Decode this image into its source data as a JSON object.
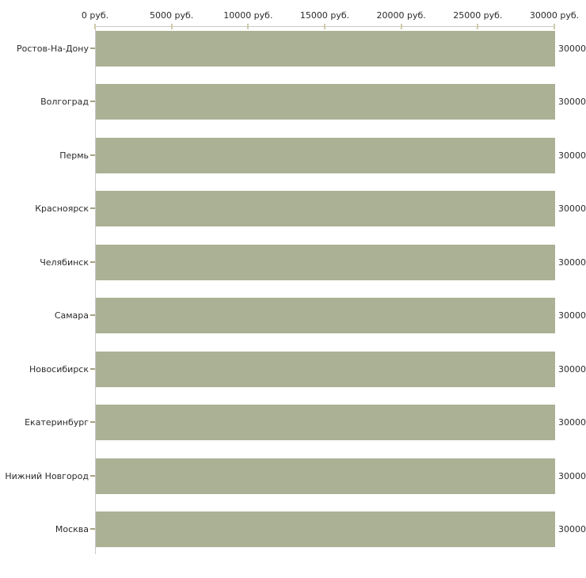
{
  "chart_data": {
    "type": "bar",
    "orientation": "horizontal",
    "title": "",
    "categories": [
      "Ростов-На-Дону",
      "Волгоград",
      "Пермь",
      "Красноярск",
      "Челябинск",
      "Самара",
      "Новосибирск",
      "Екатеринбург",
      "Нижний Новгород",
      "Москва"
    ],
    "values": [
      30000,
      30000,
      30000,
      30000,
      30000,
      30000,
      30000,
      30000,
      30000,
      30000
    ],
    "bar_value_labels": [
      "30000",
      "30000",
      "30000",
      "30000",
      "30000",
      "30000",
      "30000",
      "30000",
      "30000",
      "30000"
    ],
    "x_axis": {
      "tick_values": [
        0,
        5000,
        10000,
        15000,
        20000,
        25000,
        30000
      ],
      "tick_labels": [
        "0 руб.",
        "5000 руб.",
        "10000 руб.",
        "15000 руб.",
        "20000 руб.",
        "25000 руб.",
        "30000 руб."
      ],
      "range": [
        0,
        30000
      ],
      "unit": "руб."
    },
    "ylabel": "",
    "xlabel": "",
    "grid": "off",
    "legend": "none"
  },
  "colors": {
    "bar": "#abb194",
    "axis_line": "#c9c9c9",
    "x_tick_mark": "#cfcba9",
    "y_tick_mark": "#a5a284",
    "text": "#2b2b2b",
    "background": "#ffffff"
  }
}
